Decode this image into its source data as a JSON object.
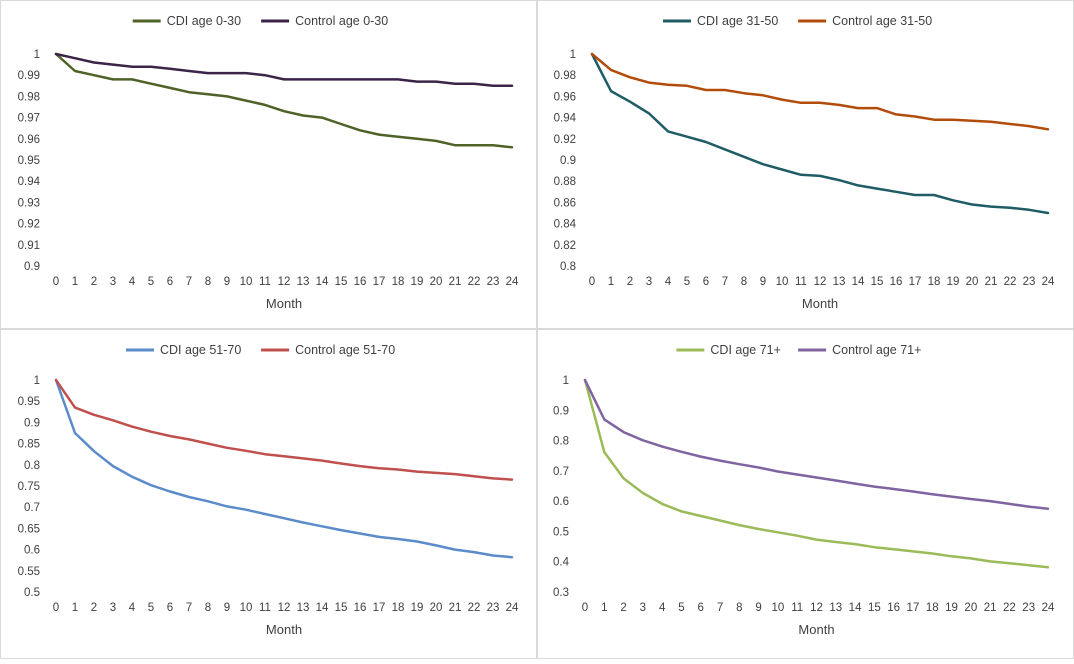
{
  "chart_data": [
    {
      "type": "line",
      "xlabel": "Month",
      "x": [
        0,
        1,
        2,
        3,
        4,
        5,
        6,
        7,
        8,
        9,
        10,
        11,
        12,
        13,
        14,
        15,
        16,
        17,
        18,
        19,
        20,
        21,
        22,
        23,
        24
      ],
      "ylim": [
        0.9,
        1.0
      ],
      "yticks": [
        "0.9",
        "0.91",
        "0.92",
        "0.93",
        "0.94",
        "0.95",
        "0.96",
        "0.97",
        "0.98",
        "0.99",
        "1"
      ],
      "series": [
        {
          "name": "CDI age 0-30",
          "color": "#4f6228",
          "values": [
            1,
            0.992,
            0.99,
            0.988,
            0.988,
            0.986,
            0.984,
            0.982,
            0.981,
            0.98,
            0.978,
            0.976,
            0.973,
            0.971,
            0.97,
            0.967,
            0.964,
            0.962,
            0.961,
            0.96,
            0.959,
            0.957,
            0.957,
            0.957,
            0.956
          ]
        },
        {
          "name": "Control age 0-30",
          "color": "#3b2448",
          "values": [
            1,
            0.998,
            0.996,
            0.995,
            0.994,
            0.994,
            0.993,
            0.992,
            0.991,
            0.991,
            0.991,
            0.99,
            0.988,
            0.988,
            0.988,
            0.988,
            0.988,
            0.988,
            0.988,
            0.987,
            0.987,
            0.986,
            0.986,
            0.985,
            0.985
          ]
        }
      ]
    },
    {
      "type": "line",
      "xlabel": "Month",
      "x": [
        0,
        1,
        2,
        3,
        4,
        5,
        6,
        7,
        8,
        9,
        10,
        11,
        12,
        13,
        14,
        15,
        16,
        17,
        18,
        19,
        20,
        21,
        22,
        23,
        24
      ],
      "ylim": [
        0.8,
        1.0
      ],
      "yticks": [
        "0.8",
        "0.82",
        "0.84",
        "0.86",
        "0.88",
        "0.9",
        "0.92",
        "0.94",
        "0.96",
        "0.98",
        "1"
      ],
      "series": [
        {
          "name": "CDI age 31-50",
          "color": "#1f5c66",
          "values": [
            1,
            0.965,
            0.955,
            0.944,
            0.927,
            0.922,
            0.917,
            0.91,
            0.903,
            0.896,
            0.891,
            0.886,
            0.885,
            0.881,
            0.876,
            0.873,
            0.87,
            0.867,
            0.867,
            0.862,
            0.858,
            0.856,
            0.855,
            0.853,
            0.85
          ]
        },
        {
          "name": "Control age 31-50",
          "color": "#b24c0a",
          "values": [
            1,
            0.985,
            0.978,
            0.973,
            0.971,
            0.97,
            0.966,
            0.966,
            0.963,
            0.961,
            0.957,
            0.954,
            0.954,
            0.952,
            0.949,
            0.949,
            0.943,
            0.941,
            0.938,
            0.938,
            0.937,
            0.936,
            0.934,
            0.932,
            0.929
          ]
        }
      ]
    },
    {
      "type": "line",
      "xlabel": "Month",
      "x": [
        0,
        1,
        2,
        3,
        4,
        5,
        6,
        7,
        8,
        9,
        10,
        11,
        12,
        13,
        14,
        15,
        16,
        17,
        18,
        19,
        20,
        21,
        22,
        23,
        24
      ],
      "ylim": [
        0.5,
        1.0
      ],
      "yticks": [
        "0.5",
        "0.55",
        "0.6",
        "0.65",
        "0.7",
        "0.75",
        "0.8",
        "0.85",
        "0.9",
        "0.95",
        "1"
      ],
      "series": [
        {
          "name": "CDI age 51-70",
          "color": "#5b8bc9",
          "values": [
            1,
            0.875,
            0.832,
            0.797,
            0.772,
            0.752,
            0.737,
            0.724,
            0.714,
            0.702,
            0.694,
            0.684,
            0.674,
            0.664,
            0.655,
            0.646,
            0.638,
            0.63,
            0.625,
            0.619,
            0.61,
            0.6,
            0.594,
            0.586,
            0.582
          ]
        },
        {
          "name": "Control age 51-70",
          "color": "#c0504d",
          "values": [
            1,
            0.935,
            0.918,
            0.905,
            0.89,
            0.878,
            0.868,
            0.86,
            0.85,
            0.84,
            0.833,
            0.825,
            0.82,
            0.815,
            0.81,
            0.803,
            0.797,
            0.792,
            0.789,
            0.784,
            0.781,
            0.778,
            0.773,
            0.768,
            0.765
          ]
        }
      ]
    },
    {
      "type": "line",
      "xlabel": "Month",
      "x": [
        0,
        1,
        2,
        3,
        4,
        5,
        6,
        7,
        8,
        9,
        10,
        11,
        12,
        13,
        14,
        15,
        16,
        17,
        18,
        19,
        20,
        21,
        22,
        23,
        24
      ],
      "ylim": [
        0.3,
        1.0
      ],
      "yticks": [
        "0.3",
        "0.4",
        "0.5",
        "0.6",
        "0.7",
        "0.8",
        "0.9",
        "1"
      ],
      "series": [
        {
          "name": "CDI age 71+",
          "color": "#9bbb59",
          "values": [
            1,
            0.762,
            0.675,
            0.627,
            0.591,
            0.566,
            0.551,
            0.536,
            0.521,
            0.508,
            0.497,
            0.486,
            0.473,
            0.465,
            0.458,
            0.448,
            0.441,
            0.434,
            0.427,
            0.418,
            0.411,
            0.401,
            0.395,
            0.388,
            0.382
          ]
        },
        {
          "name": "Control age 71+",
          "color": "#8064a2",
          "values": [
            1,
            0.87,
            0.828,
            0.801,
            0.78,
            0.763,
            0.747,
            0.734,
            0.722,
            0.711,
            0.698,
            0.688,
            0.678,
            0.668,
            0.658,
            0.648,
            0.64,
            0.632,
            0.623,
            0.615,
            0.607,
            0.6,
            0.591,
            0.582,
            0.575
          ]
        }
      ]
    }
  ]
}
